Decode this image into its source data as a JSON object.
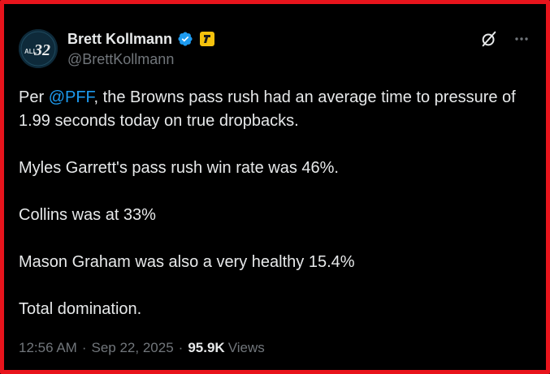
{
  "author": {
    "display_name": "Brett Kollmann",
    "handle": "@BrettKollmann",
    "avatar_text_small": "ALL",
    "avatar_text_big": "32",
    "verified_color": "#1d9bf0",
    "affiliate_badge_color": "#f4c20d"
  },
  "post": {
    "line1_prefix": "Per ",
    "mention": "@PFF",
    "line1_suffix": ", the Browns pass rush had an average time to pressure of 1.99 seconds today on true dropbacks.",
    "line2": "Myles Garrett's pass rush win rate was 46%.",
    "line3": "Collins was at 33%",
    "line4": "Mason Graham was also a very healthy 15.4%",
    "line5": "Total domination."
  },
  "meta": {
    "time": "12:56 AM",
    "separator": "·",
    "date": "Sep 22, 2025",
    "views_count": "95.9K",
    "views_label": "Views"
  },
  "icons": {
    "grok": "grok-icon",
    "more": "more-icon"
  },
  "colors": {
    "frame_border": "#e8141c",
    "background": "#000000",
    "text_primary": "#e7e9ea",
    "text_secondary": "#71767b",
    "link": "#1d9bf0"
  }
}
